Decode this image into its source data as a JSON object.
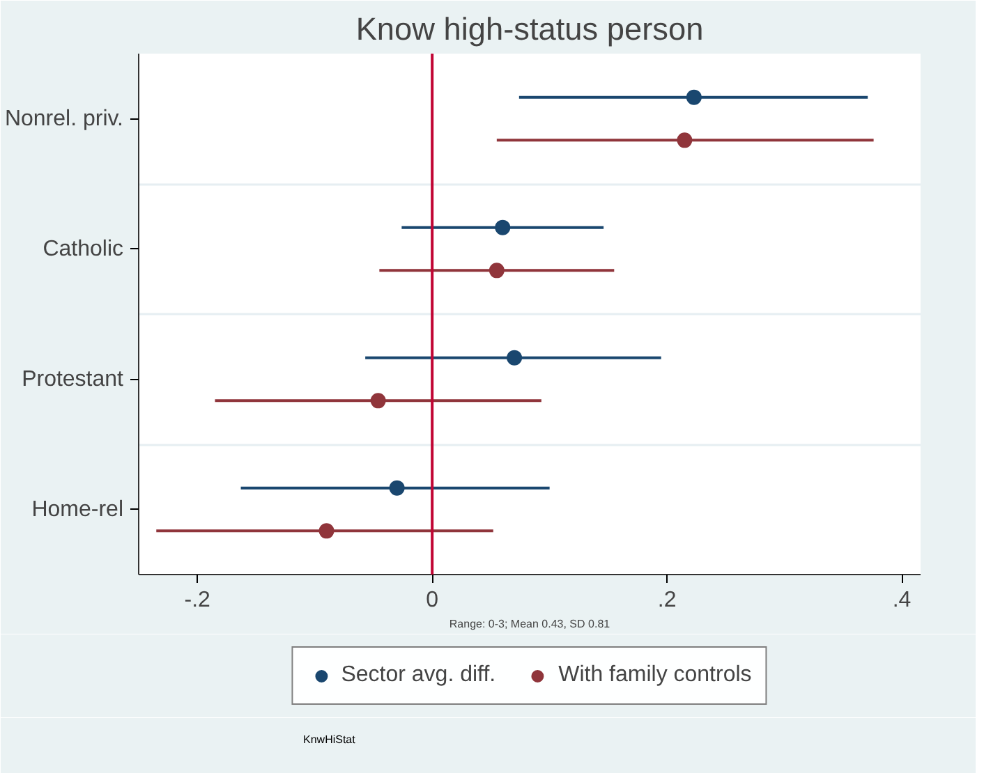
{
  "chart_data": {
    "type": "scatter",
    "orientation": "horizontal",
    "title": "Know high-status person",
    "xlabel": "Range: 0-3; Mean 0.43, SD 0.81",
    "categories": [
      "Nonrel. priv.",
      "Catholic",
      "Protestant",
      "Home-rel"
    ],
    "series": [
      {
        "name": "Sector avg. diff.",
        "color": "#1a476f",
        "values": [
          0.223,
          0.06,
          0.07,
          -0.03
        ],
        "errors": [
          [
            0.074,
            0.371
          ],
          [
            -0.026,
            0.146
          ],
          [
            -0.057,
            0.195
          ],
          [
            -0.163,
            0.1
          ]
        ]
      },
      {
        "name": "With family controls",
        "color": "#90353b",
        "values": [
          0.215,
          0.055,
          -0.046,
          -0.09
        ],
        "errors": [
          [
            0.055,
            0.376
          ],
          [
            -0.045,
            0.155
          ],
          [
            -0.185,
            0.093
          ],
          [
            -0.235,
            0.052
          ]
        ]
      }
    ],
    "xlim": [
      -0.25,
      0.416
    ],
    "xticks": [
      {
        "value": -0.2,
        "label": "-.2"
      },
      0,
      {
        "value": 0.2,
        "label": ".2"
      },
      {
        "value": 0.4,
        "label": ".4"
      }
    ],
    "ref_lines": [
      {
        "axis": "x",
        "value": 0,
        "color": "#c10534"
      }
    ],
    "grid": "y",
    "legend": "bottom",
    "marker": "circle",
    "annotations": [
      "KnwHiStat"
    ]
  }
}
